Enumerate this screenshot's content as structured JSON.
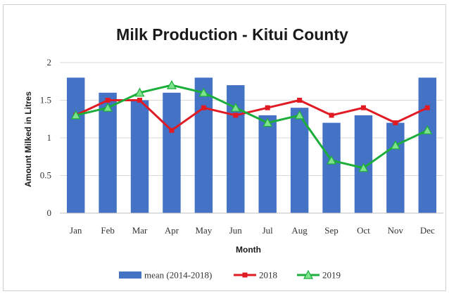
{
  "chart_data": {
    "type": "bar+line",
    "title": "Milk Production - Kitui County",
    "xlabel": "Month",
    "ylabel": "Amount Milked in Litres",
    "ylim": [
      0,
      2
    ],
    "yticks": [
      "0",
      "0.5",
      "1",
      "1.5",
      "2"
    ],
    "categories": [
      "Jan",
      "Feb",
      "Mar",
      "Apr",
      "May",
      "Jun",
      "Jul",
      "Aug",
      "Sep",
      "Oct",
      "Nov",
      "Dec"
    ],
    "grid": true,
    "legend_position": "bottom",
    "series": [
      {
        "name": "mean (2014-2018)",
        "kind": "bar",
        "color": "#4472C4",
        "values": [
          1.8,
          1.6,
          1.5,
          1.6,
          1.8,
          1.7,
          1.3,
          1.4,
          1.2,
          1.3,
          1.2,
          1.8
        ]
      },
      {
        "name": "2018",
        "kind": "line",
        "marker": "square",
        "color": "#E01B24",
        "values": [
          1.3,
          1.5,
          1.5,
          1.1,
          1.4,
          1.3,
          1.4,
          1.5,
          1.3,
          1.4,
          1.2,
          1.4
        ]
      },
      {
        "name": "2019",
        "kind": "line",
        "marker": "triangle",
        "color": "#1BAE3A",
        "values": [
          1.3,
          1.4,
          1.6,
          1.7,
          1.6,
          1.4,
          1.2,
          1.3,
          0.7,
          0.6,
          0.9,
          1.1
        ]
      }
    ]
  }
}
